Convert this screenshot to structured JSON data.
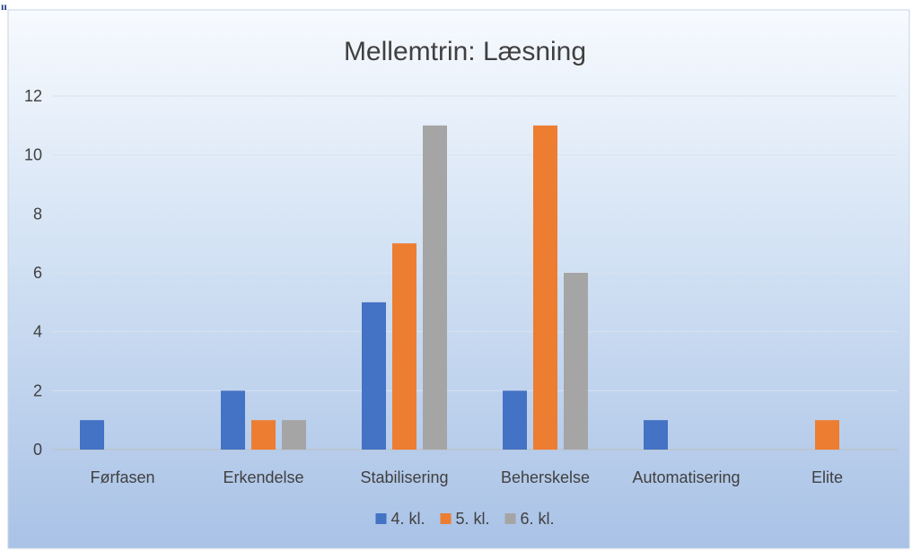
{
  "corner_mark": "ıı",
  "chart_data": {
    "type": "bar",
    "title": "Mellemtrin: Læsning",
    "xlabel": "",
    "ylabel": "",
    "ylim": [
      0,
      12
    ],
    "yticks": [
      0,
      2,
      4,
      6,
      8,
      10,
      12
    ],
    "grid": true,
    "legend_position": "bottom",
    "categories": [
      "Førfasen",
      "Erkendelse",
      "Stabilisering",
      "Beherskelse",
      "Automatisering",
      "Elite"
    ],
    "series": [
      {
        "name": "4. kl.",
        "color": "#4472c4",
        "values": [
          1,
          2,
          5,
          2,
          1,
          0
        ]
      },
      {
        "name": "5. kl.",
        "color": "#ed7d31",
        "values": [
          0,
          1,
          7,
          11,
          0,
          1
        ]
      },
      {
        "name": "6. kl.",
        "color": "#a5a5a5",
        "values": [
          0,
          1,
          11,
          6,
          0,
          0
        ]
      }
    ]
  }
}
